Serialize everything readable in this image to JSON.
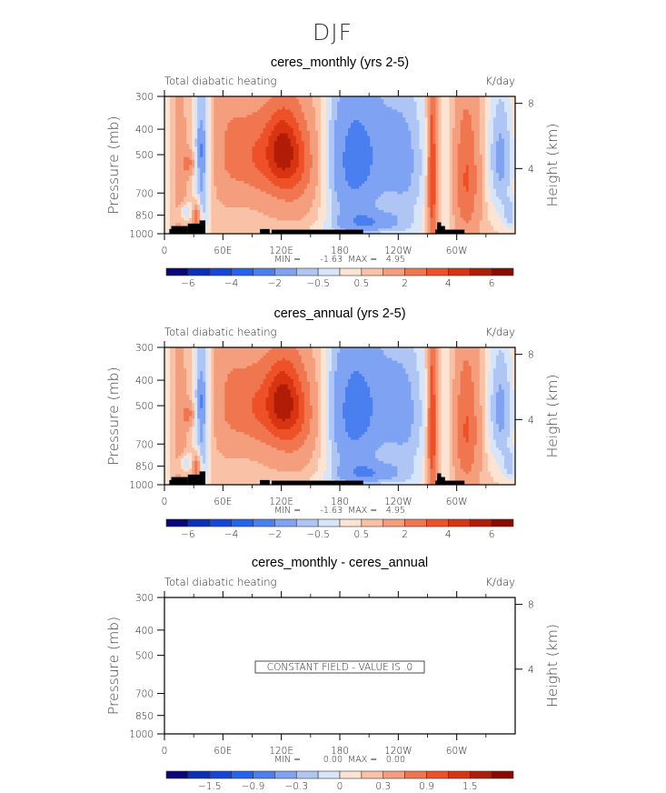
{
  "figure_title": "DJF",
  "colors": {
    "levels_palette": [
      "#08087a",
      "#0a2fb8",
      "#1446dc",
      "#2563ef",
      "#4a7ff0",
      "#7fa3f2",
      "#afc6f5",
      "#d6e5f9",
      "#fde4d2",
      "#f9c2a6",
      "#f59e7d",
      "#f07650",
      "#ee5028",
      "#d93412",
      "#b01d07",
      "#8a0a00"
    ],
    "topography": "#000000",
    "frame": "#000000"
  },
  "chart_data": [
    {
      "type": "heatmap",
      "title": "ceres_monthly (yrs 2-5)",
      "subtitle_left": "Total diabatic heating",
      "subtitle_right": "K/day",
      "xlabel": "",
      "ylabel": "Pressure (mb)",
      "ylabel_right": "Height (km)",
      "x_range": [
        0,
        360
      ],
      "y_range_mb": [
        300,
        1000
      ],
      "x_ticks": [
        {
          "value": 0,
          "label": "0"
        },
        {
          "value": 60,
          "label": "60E"
        },
        {
          "value": 120,
          "label": "120E"
        },
        {
          "value": 180,
          "label": "180"
        },
        {
          "value": 240,
          "label": "120W"
        },
        {
          "value": 300,
          "label": "60W"
        }
      ],
      "x_minor_ticks": [
        30,
        90,
        150,
        210,
        270,
        330
      ],
      "y_ticks": [
        300,
        400,
        500,
        700,
        850,
        1000
      ],
      "y_right_ticks": [
        {
          "value_km": 8,
          "label": "8"
        },
        {
          "value_km": 4,
          "label": "4"
        }
      ],
      "min_label": "MIN =",
      "min_value": "-1.63",
      "max_label": "MAX =",
      "max_value": "4.95",
      "colorbar": {
        "levels": [
          -7,
          -6,
          -5,
          -4,
          -3,
          -2,
          -1,
          -0.5,
          0,
          0.5,
          1,
          2,
          3,
          4,
          5,
          6
        ],
        "labels": [
          {
            "boundary": 1,
            "text": "-6"
          },
          {
            "boundary": 3,
            "text": "-4"
          },
          {
            "boundary": 5,
            "text": "-2"
          },
          {
            "boundary": 7,
            "text": "-0.5"
          },
          {
            "boundary": 9,
            "text": "0.5"
          },
          {
            "boundary": 11,
            "text": "2"
          },
          {
            "boundary": 13,
            "text": "4"
          },
          {
            "boundary": 15,
            "text": "6"
          }
        ]
      },
      "field": {
        "background_value": 0.7,
        "features": [
          {
            "lon": 3,
            "p": 650,
            "dlon": 4,
            "dp": 350,
            "amp": -0.9
          },
          {
            "lon": 15,
            "p": 620,
            "dlon": 8,
            "dp": 330,
            "amp": 0.6
          },
          {
            "lon": 22,
            "p": 830,
            "dlon": 5,
            "dp": 45,
            "amp": -1.3
          },
          {
            "lon": 25,
            "p": 540,
            "dlon": 5,
            "dp": 40,
            "amp": 1.6
          },
          {
            "lon": 33,
            "p": 880,
            "dlon": 3,
            "dp": 90,
            "amp": 3.0
          },
          {
            "lon": 38,
            "p": 560,
            "dlon": 6,
            "dp": 330,
            "amp": -2.0
          },
          {
            "lon": 38,
            "p": 480,
            "dlon": 3,
            "dp": 50,
            "amp": -1.0
          },
          {
            "lon": 65,
            "p": 480,
            "dlon": 12,
            "dp": 180,
            "amp": 1.2
          },
          {
            "lon": 90,
            "p": 500,
            "dlon": 14,
            "dp": 140,
            "amp": 1.6
          },
          {
            "lon": 125,
            "p": 520,
            "dlon": 18,
            "dp": 140,
            "amp": 2.9
          },
          {
            "lon": 120,
            "p": 460,
            "dlon": 10,
            "dp": 90,
            "amp": 1.8
          },
          {
            "lon": 140,
            "p": 560,
            "dlon": 25,
            "dp": 250,
            "amp": 0.9
          },
          {
            "lon": 190,
            "p": 560,
            "dlon": 22,
            "dp": 300,
            "amp": -2.2
          },
          {
            "lon": 215,
            "p": 480,
            "dlon": 30,
            "dp": 220,
            "amp": -1.4
          },
          {
            "lon": 210,
            "p": 900,
            "dlon": 22,
            "dp": 60,
            "amp": -1.8
          },
          {
            "lon": 250,
            "p": 600,
            "dlon": 16,
            "dp": 360,
            "amp": -1.2
          },
          {
            "lon": 275,
            "p": 600,
            "dlon": 3.5,
            "dp": 380,
            "amp": 3.5
          },
          {
            "lon": 290,
            "p": 620,
            "dlon": 5,
            "dp": 300,
            "amp": -0.7
          },
          {
            "lon": 310,
            "p": 620,
            "dlon": 9,
            "dp": 260,
            "amp": 2.4
          },
          {
            "lon": 345,
            "p": 520,
            "dlon": 10,
            "dp": 220,
            "amp": -1.9
          },
          {
            "lon": 355,
            "p": 850,
            "dlon": 5,
            "dp": 80,
            "amp": -1.2
          },
          {
            "lon": 180,
            "p": 960,
            "dlon": 60,
            "dp": 40,
            "amp": -0.3
          }
        ]
      },
      "topography": [
        {
          "lon_start": 5,
          "lon_end": 24,
          "p_top": 960
        },
        {
          "lon_start": 7,
          "lon_end": 24,
          "p_top": 935
        },
        {
          "lon_start": 24,
          "lon_end": 38,
          "p_top": 915
        },
        {
          "lon_start": 36,
          "lon_end": 42,
          "p_top": 890
        },
        {
          "lon_start": 98,
          "lon_end": 108,
          "p_top": 960
        },
        {
          "lon_start": 110,
          "lon_end": 204,
          "p_top": 965
        },
        {
          "lon_start": 278,
          "lon_end": 308,
          "p_top": 965
        },
        {
          "lon_start": 280,
          "lon_end": 284,
          "p_top": 905
        },
        {
          "lon_start": 280,
          "lon_end": 288,
          "p_top": 935
        }
      ]
    },
    {
      "type": "heatmap",
      "title": "ceres_annual (yrs 2-5)",
      "subtitle_left": "Total diabatic heating",
      "subtitle_right": "K/day",
      "xlabel": "",
      "ylabel": "Pressure (mb)",
      "ylabel_right": "Height (km)",
      "x_range": [
        0,
        360
      ],
      "y_range_mb": [
        300,
        1000
      ],
      "x_ticks": [
        {
          "value": 0,
          "label": "0"
        },
        {
          "value": 60,
          "label": "60E"
        },
        {
          "value": 120,
          "label": "120E"
        },
        {
          "value": 180,
          "label": "180"
        },
        {
          "value": 240,
          "label": "120W"
        },
        {
          "value": 300,
          "label": "60W"
        }
      ],
      "x_minor_ticks": [
        30,
        90,
        150,
        210,
        270,
        330
      ],
      "y_ticks": [
        300,
        400,
        500,
        700,
        850,
        1000
      ],
      "y_right_ticks": [
        {
          "value_km": 8,
          "label": "8"
        },
        {
          "value_km": 4,
          "label": "4"
        }
      ],
      "min_label": "MIN =",
      "min_value": "-1.63",
      "max_label": "MAX =",
      "max_value": "4.95",
      "colorbar": {
        "levels": [
          -7,
          -6,
          -5,
          -4,
          -3,
          -2,
          -1,
          -0.5,
          0,
          0.5,
          1,
          2,
          3,
          4,
          5,
          6
        ],
        "labels": [
          {
            "boundary": 1,
            "text": "-6"
          },
          {
            "boundary": 3,
            "text": "-4"
          },
          {
            "boundary": 5,
            "text": "-2"
          },
          {
            "boundary": 7,
            "text": "-0.5"
          },
          {
            "boundary": 9,
            "text": "0.5"
          },
          {
            "boundary": 11,
            "text": "2"
          },
          {
            "boundary": 13,
            "text": "4"
          },
          {
            "boundary": 15,
            "text": "6"
          }
        ]
      },
      "field": "same_as_panel_1",
      "topography": "same_as_panel_1"
    },
    {
      "type": "heatmap",
      "title": "ceres_monthly - ceres_annual",
      "subtitle_left": "Total diabatic heating",
      "subtitle_right": "K/day",
      "xlabel": "",
      "ylabel": "Pressure (mb)",
      "ylabel_right": "Height (km)",
      "x_range": [
        0,
        360
      ],
      "y_range_mb": [
        300,
        1000
      ],
      "x_ticks": [
        {
          "value": 0,
          "label": "0"
        },
        {
          "value": 60,
          "label": "60E"
        },
        {
          "value": 120,
          "label": "120E"
        },
        {
          "value": 180,
          "label": "180"
        },
        {
          "value": 240,
          "label": "120W"
        },
        {
          "value": 300,
          "label": "60W"
        }
      ],
      "x_minor_ticks": [
        30,
        90,
        150,
        210,
        270,
        330
      ],
      "y_ticks": [
        300,
        400,
        500,
        700,
        850,
        1000
      ],
      "y_right_ticks": [
        {
          "value_km": 8,
          "label": "8"
        },
        {
          "value_km": 4,
          "label": "4"
        }
      ],
      "min_label": "MIN =",
      "min_value": "0.00",
      "max_label": "MAX =",
      "max_value": "0.00",
      "constant_field_text": "CONSTANT FIELD - VALUE IS .0",
      "colorbar": {
        "levels": [
          -2.1,
          -1.8,
          -1.5,
          -1.2,
          -0.9,
          -0.6,
          -0.3,
          -0.15,
          0,
          0.15,
          0.3,
          0.6,
          0.9,
          1.2,
          1.5,
          1.8
        ],
        "labels": [
          {
            "boundary": 2,
            "text": "-1.5"
          },
          {
            "boundary": 4,
            "text": "-0.9"
          },
          {
            "boundary": 6,
            "text": "-0.3"
          },
          {
            "boundary": 8,
            "text": "0"
          },
          {
            "boundary": 10,
            "text": "0.3"
          },
          {
            "boundary": 12,
            "text": "0.9"
          },
          {
            "boundary": 14,
            "text": "1.5"
          }
        ]
      },
      "field": null,
      "topography": null
    }
  ]
}
